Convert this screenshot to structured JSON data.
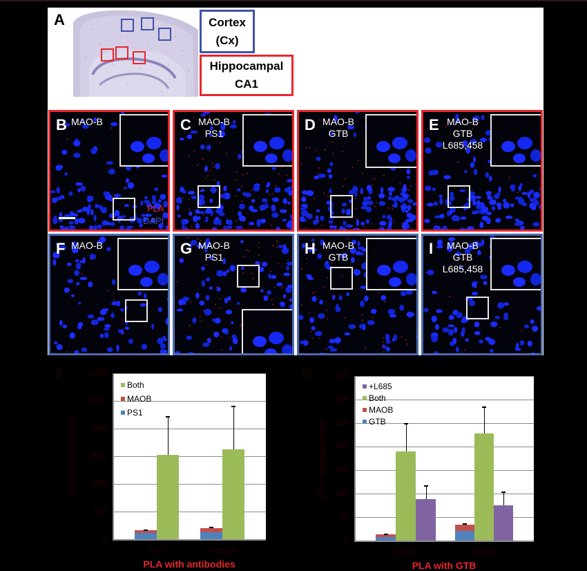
{
  "figure": {
    "panelA": {
      "letter": "A",
      "legend": {
        "cortex": {
          "line1": "Cortex",
          "line2": "(Cx)",
          "color": "#3f51a8"
        },
        "hippocampal": {
          "line1": "Hippocampal",
          "line2": "CA1",
          "color": "#e8262d"
        }
      }
    },
    "micrographs": [
      {
        "letter": "B",
        "lines": [
          "MAO-B"
        ],
        "region": "CA1"
      },
      {
        "letter": "C",
        "lines": [
          "MAO-B",
          "PS1"
        ],
        "region": "CA1"
      },
      {
        "letter": "D",
        "lines": [
          "MAO-B",
          "GTB"
        ],
        "region": "CA1"
      },
      {
        "letter": "E",
        "lines": [
          "MAO-B",
          "GTB",
          "L685,458"
        ],
        "region": "CA1"
      },
      {
        "letter": "F",
        "lines": [
          "MAO-B"
        ],
        "region": "Cortex"
      },
      {
        "letter": "G",
        "lines": [
          "MAO-B",
          "PS1"
        ],
        "region": "Cortex"
      },
      {
        "letter": "H",
        "lines": [
          "MAO-B",
          "GTB"
        ],
        "region": "Cortex"
      },
      {
        "letter": "I",
        "lines": [
          "MAO-B",
          "GTB",
          "L685,458"
        ],
        "region": "Cortex"
      }
    ],
    "channel_legend": {
      "pla": "PLA",
      "dapi": "DAPI",
      "pla_color": "#e8262d",
      "dapi_color": "#4a55c8"
    }
  },
  "chart_data": [
    {
      "panel": "J",
      "type": "bar",
      "title": "",
      "xlabel": "PLA with antibodies",
      "ylabel": "PLA signals/image",
      "ylim": [
        0,
        1200
      ],
      "yticks": [
        0,
        200,
        400,
        600,
        800,
        1000,
        1200
      ],
      "grid": true,
      "legend_position": "upper-left-inside",
      "categories": [
        "CA1",
        "Cortex"
      ],
      "series": [
        {
          "name": "PS1",
          "color": "#4f81bd",
          "stack": "single",
          "values": [
            45,
            50
          ]
        },
        {
          "name": "MAOB",
          "color": "#c0504d",
          "stack": "single",
          "values": [
            20,
            30
          ]
        },
        {
          "name": "Both",
          "color": "#9bbb59",
          "stack": "both",
          "values": [
            610,
            650
          ],
          "error": [
            280,
            315
          ]
        }
      ],
      "stack_error": [
        5,
        10
      ],
      "legend": [
        "Both",
        "MAOB",
        "PS1"
      ]
    },
    {
      "panel": "K",
      "type": "bar",
      "title": "",
      "xlabel": "PLA with GTB",
      "ylabel": "PLA signals/image",
      "ylim": [
        0,
        350
      ],
      "yticks": [
        0,
        50,
        100,
        150,
        200,
        250,
        300,
        350
      ],
      "grid": true,
      "legend_position": "upper-left-inside",
      "categories": [
        "CA1",
        "Cortex"
      ],
      "series": [
        {
          "name": "GTB",
          "color": "#4f81bd",
          "stack": "single",
          "values": [
            7,
            21
          ]
        },
        {
          "name": "MAOB",
          "color": "#c0504d",
          "stack": "single",
          "values": [
            6,
            13
          ]
        },
        {
          "name": "Both",
          "color": "#9bbb59",
          "stack": "both",
          "values": [
            190,
            228
          ],
          "error": [
            60,
            58
          ]
        },
        {
          "name": "+L685",
          "color": "#8064a2",
          "stack": "l685",
          "values": [
            88,
            75
          ],
          "error": [
            30,
            29
          ]
        }
      ],
      "stack_error": [
        2,
        3
      ],
      "legend": [
        "+L685",
        "Both",
        "MAOB",
        "GTB"
      ]
    }
  ]
}
